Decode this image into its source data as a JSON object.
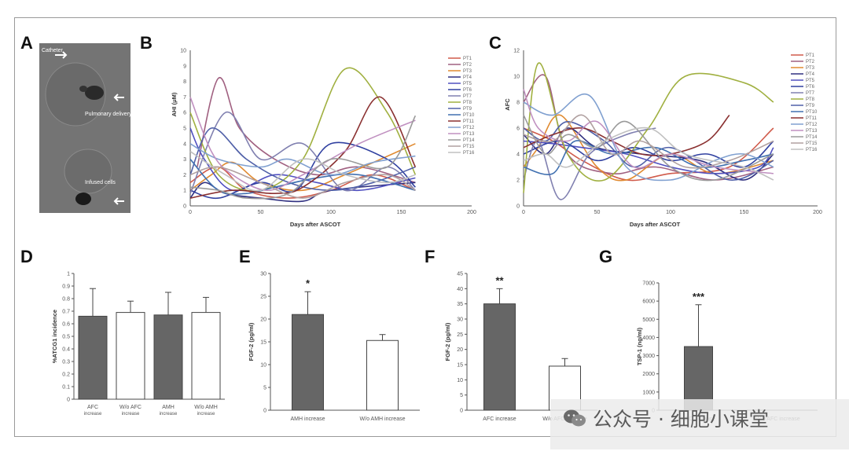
{
  "panel_letters": [
    "A",
    "B",
    "C",
    "D",
    "E",
    "F",
    "G"
  ],
  "watermark": {
    "text": "公众号 · 细胞小课堂",
    "icon": "wechat-icon"
  },
  "image_panel": {
    "annotations": [
      "Catheter",
      "Pulmonary delivery",
      "Infused cells"
    ]
  },
  "colors": {
    "dark_bar": "#666666",
    "white_bar": "#ffffff",
    "series": [
      "#d05a4a",
      "#a06080",
      "#e08a30",
      "#303080",
      "#5050c0",
      "#3040a0",
      "#8080b0",
      "#a0b040",
      "#5060a8",
      "#4070b0",
      "#8a3030",
      "#80a0d0",
      "#c090c0",
      "#9a9a9a",
      "#b0a0a0",
      "#c0c0c0"
    ]
  },
  "chart_data": [
    {
      "id": "B",
      "type": "line",
      "xlabel": "Days after ASCOT",
      "ylabel": "AHI (μM)",
      "xlim": [
        0,
        200
      ],
      "ylim": [
        0,
        10
      ],
      "xticks": [
        "0",
        "50",
        "100",
        "150",
        "200"
      ],
      "yticks": [
        "0",
        "1",
        "2",
        "3",
        "4",
        "5",
        "6",
        "7",
        "8",
        "9",
        "10"
      ],
      "legend": [
        "PT1",
        "PT2",
        "PT3",
        "PT4",
        "PT5",
        "PT6",
        "PT7",
        "PT8",
        "PT9",
        "PT10",
        "PT11",
        "PT12",
        "PT13",
        "PT14",
        "PT15",
        "PT16"
      ],
      "series": [
        {
          "x": [
            0,
            20,
            40,
            70,
            100,
            130,
            160
          ],
          "y": [
            1.5,
            2.5,
            1.0,
            0.5,
            1.0,
            2.0,
            1.0
          ]
        },
        {
          "x": [
            5,
            20,
            35,
            60,
            90,
            120,
            160
          ],
          "y": [
            2.5,
            8.2,
            5.0,
            3.0,
            2.0,
            2.5,
            1.5
          ]
        },
        {
          "x": [
            0,
            15,
            30,
            50,
            80,
            110,
            160
          ],
          "y": [
            1.0,
            2.0,
            2.8,
            1.5,
            1.0,
            2.0,
            4.0
          ]
        },
        {
          "x": [
            0,
            10,
            25,
            50,
            80,
            100,
            160
          ],
          "y": [
            0.5,
            1.5,
            0.8,
            0.5,
            0.3,
            1.0,
            1.5
          ]
        },
        {
          "x": [
            0,
            10,
            30,
            60,
            90,
            120,
            160
          ],
          "y": [
            5.0,
            3.0,
            1.0,
            2.0,
            1.5,
            1.0,
            1.8
          ]
        },
        {
          "x": [
            0,
            20,
            50,
            75,
            100,
            140,
            160
          ],
          "y": [
            1.0,
            0.5,
            1.5,
            1.0,
            4.0,
            3.0,
            1.2
          ]
        },
        {
          "x": [
            0,
            25,
            50,
            80,
            110,
            140,
            160
          ],
          "y": [
            0.8,
            6.0,
            3.0,
            4.0,
            1.0,
            2.5,
            1.0
          ]
        },
        {
          "x": [
            0,
            20,
            50,
            80,
            110,
            140,
            160
          ],
          "y": [
            6.0,
            2.0,
            1.0,
            3.0,
            8.8,
            6.0,
            2.0
          ]
        },
        {
          "x": [
            0,
            15,
            40,
            70,
            100,
            130,
            160
          ],
          "y": [
            2.0,
            5.0,
            3.0,
            1.5,
            1.0,
            1.5,
            2.5
          ]
        },
        {
          "x": [
            0,
            20,
            40,
            60,
            90,
            120,
            160
          ],
          "y": [
            3.0,
            1.0,
            0.8,
            1.2,
            1.8,
            2.0,
            1.0
          ]
        },
        {
          "x": [
            0,
            30,
            60,
            80,
            110,
            135,
            160
          ],
          "y": [
            0.5,
            1.0,
            0.8,
            1.2,
            3.5,
            7.0,
            2.5
          ]
        },
        {
          "x": [
            0,
            20,
            50,
            70,
            100,
            130,
            160
          ],
          "y": [
            4.0,
            3.0,
            2.5,
            3.0,
            2.0,
            2.8,
            3.2
          ]
        },
        {
          "x": [
            0,
            15,
            30,
            55,
            80,
            120,
            160
          ],
          "y": [
            7.0,
            3.5,
            2.0,
            1.0,
            2.0,
            4.0,
            5.5
          ]
        },
        {
          "x": [
            0,
            20,
            40,
            70,
            100,
            140,
            160
          ],
          "y": [
            1.2,
            1.0,
            0.5,
            0.8,
            3.0,
            2.5,
            5.8
          ]
        },
        {
          "x": [
            0,
            20,
            50,
            80,
            110,
            140,
            160
          ],
          "y": [
            2.0,
            2.5,
            1.5,
            0.5,
            1.5,
            2.0,
            1.0
          ]
        },
        {
          "x": [
            0,
            25,
            50,
            80,
            110,
            140,
            160
          ],
          "y": [
            3.5,
            2.0,
            1.0,
            3.0,
            2.0,
            1.5,
            2.0
          ]
        }
      ]
    },
    {
      "id": "C",
      "type": "line",
      "xlabel": "Days after ASCOT",
      "ylabel": "AFC",
      "xlim": [
        0,
        200
      ],
      "ylim": [
        0,
        12
      ],
      "xticks": [
        "0",
        "50",
        "100",
        "150",
        "200"
      ],
      "yticks": [
        "0",
        "2",
        "4",
        "6",
        "8",
        "10",
        "12"
      ],
      "legend": [
        "PT1",
        "PT2",
        "PT3",
        "PT4",
        "PT5",
        "PT6",
        "PT7",
        "PT8",
        "PT9",
        "PT10",
        "PT11",
        "PT12",
        "PT13",
        "PT14",
        "PT15",
        "PT16"
      ],
      "series": [
        {
          "x": [
            0,
            20,
            40,
            70,
            100,
            140,
            170
          ],
          "y": [
            6.0,
            5.0,
            3.5,
            2.0,
            2.5,
            3.0,
            6.0
          ]
        },
        {
          "x": [
            0,
            15,
            30,
            60,
            90,
            130,
            170
          ],
          "y": [
            8.0,
            10.0,
            4.0,
            2.5,
            3.0,
            2.0,
            3.0
          ]
        },
        {
          "x": [
            0,
            10,
            25,
            50,
            70,
            100,
            130,
            170
          ],
          "y": [
            3.0,
            4.5,
            7.0,
            3.0,
            2.0,
            4.0,
            2.5,
            3.5
          ]
        },
        {
          "x": [
            0,
            15,
            30,
            50,
            80,
            120,
            150,
            170
          ],
          "y": [
            5.5,
            4.0,
            6.0,
            4.5,
            4.0,
            3.5,
            2.0,
            4.0
          ]
        },
        {
          "x": [
            0,
            20,
            40,
            70,
            100,
            130,
            160,
            170
          ],
          "y": [
            5.0,
            4.8,
            4.5,
            4.0,
            3.0,
            2.5,
            3.0,
            4.5
          ]
        },
        {
          "x": [
            0,
            25,
            50,
            75,
            100,
            125,
            150,
            170
          ],
          "y": [
            4.0,
            5.0,
            3.5,
            4.5,
            3.5,
            4.0,
            3.0,
            5.0
          ]
        },
        {
          "x": [
            0,
            10,
            25,
            45,
            70,
            90
          ],
          "y": [
            2.0,
            5.0,
            0.5,
            4.0,
            5.5,
            6.0
          ]
        },
        {
          "x": [
            0,
            10,
            30,
            55,
            85,
            110,
            150,
            170
          ],
          "y": [
            1.0,
            11.0,
            4.0,
            2.0,
            6.0,
            10.0,
            9.5,
            8.0
          ]
        },
        {
          "x": [
            0,
            15,
            30,
            55,
            75,
            100,
            140,
            170
          ],
          "y": [
            6.0,
            5.0,
            6.5,
            5.0,
            3.0,
            4.5,
            2.0,
            3.5
          ]
        },
        {
          "x": [
            0,
            20,
            35,
            60,
            90,
            120,
            150,
            170
          ],
          "y": [
            3.0,
            2.5,
            5.0,
            4.0,
            4.5,
            3.0,
            3.5,
            4.0
          ]
        },
        {
          "x": [
            0,
            20,
            40,
            60,
            80,
            100,
            125,
            140
          ],
          "y": [
            4.5,
            5.5,
            6.0,
            5.0,
            4.0,
            4.0,
            5.0,
            7.0
          ]
        },
        {
          "x": [
            0,
            20,
            45,
            70,
            100,
            130,
            150,
            170
          ],
          "y": [
            8.0,
            7.0,
            8.5,
            3.0,
            2.0,
            3.5,
            4.0,
            3.0
          ]
        },
        {
          "x": [
            0,
            10,
            30,
            50,
            75,
            100,
            130,
            170
          ],
          "y": [
            9.0,
            6.0,
            5.0,
            6.5,
            3.0,
            4.0,
            3.0,
            2.5
          ]
        },
        {
          "x": [
            0,
            15,
            30,
            50,
            70,
            100,
            130,
            170
          ],
          "y": [
            7.0,
            4.0,
            5.5,
            4.5,
            6.5,
            3.0,
            2.0,
            4.0
          ]
        },
        {
          "x": [
            0,
            20,
            40,
            60,
            80,
            110,
            140,
            170
          ],
          "y": [
            5.5,
            5.0,
            7.0,
            4.0,
            5.0,
            3.0,
            3.5,
            5.0
          ]
        },
        {
          "x": [
            0,
            15,
            30,
            55,
            85,
            110,
            150,
            170
          ],
          "y": [
            3.5,
            4.0,
            3.0,
            5.0,
            6.0,
            4.0,
            3.0,
            2.0
          ]
        }
      ]
    },
    {
      "id": "D",
      "type": "bar",
      "ylabel": "%ATCG1 incidence",
      "ylim": [
        0,
        1
      ],
      "yticks": [
        "0",
        "0.1",
        "0.2",
        "0.3",
        "0.4",
        "0.5",
        "0.6",
        "0.7",
        "0.8",
        "0.9",
        "1"
      ],
      "categories": [
        "AFC increase",
        "W/o AFC increase",
        "AMH increase",
        "W/o AMH increase"
      ],
      "category_lines": [
        [
          "AFC",
          "increase"
        ],
        [
          "W/o AFC",
          "increase"
        ],
        [
          "AMH",
          "increase"
        ],
        [
          "W/o AMH",
          "increase"
        ]
      ],
      "values": [
        0.66,
        0.69,
        0.67,
        0.69
      ],
      "errors": [
        0.22,
        0.09,
        0.18,
        0.12
      ],
      "fills": [
        "dark",
        "white",
        "dark",
        "white"
      ]
    },
    {
      "id": "E",
      "type": "bar",
      "ylabel": "FGF-2 (pg/ml)",
      "ylim": [
        0,
        30
      ],
      "yticks": [
        "0",
        "5",
        "10",
        "15",
        "20",
        "25",
        "30"
      ],
      "categories": [
        "AMH increase",
        "W/o AMH increase"
      ],
      "values": [
        21,
        15.3
      ],
      "errors": [
        5,
        1.3
      ],
      "fills": [
        "dark",
        "white"
      ],
      "significance": [
        "*",
        ""
      ]
    },
    {
      "id": "F",
      "type": "bar",
      "ylabel": "FGF-2 (pg/ml)",
      "ylim": [
        0,
        45
      ],
      "yticks": [
        "0",
        "5",
        "10",
        "15",
        "20",
        "25",
        "30",
        "35",
        "40",
        "45"
      ],
      "categories": [
        "AFC increase",
        "W/o AFC increase"
      ],
      "values": [
        35,
        14.5
      ],
      "errors": [
        5,
        2.5
      ],
      "fills": [
        "dark",
        "white"
      ],
      "significance": [
        "**",
        ""
      ]
    },
    {
      "id": "G",
      "type": "bar",
      "ylabel": "TSP-1 (ng/ml)",
      "ylim": [
        0,
        7000
      ],
      "yticks": [
        "0",
        "1000",
        "2000",
        "3000",
        "4000",
        "5000",
        "6000",
        "7000"
      ],
      "categories": [
        "AFC increase",
        "W/o AFC increase"
      ],
      "values": [
        3500,
        0
      ],
      "errors": [
        2300,
        0
      ],
      "fills": [
        "dark",
        "white"
      ],
      "significance": [
        "***",
        ""
      ]
    }
  ]
}
